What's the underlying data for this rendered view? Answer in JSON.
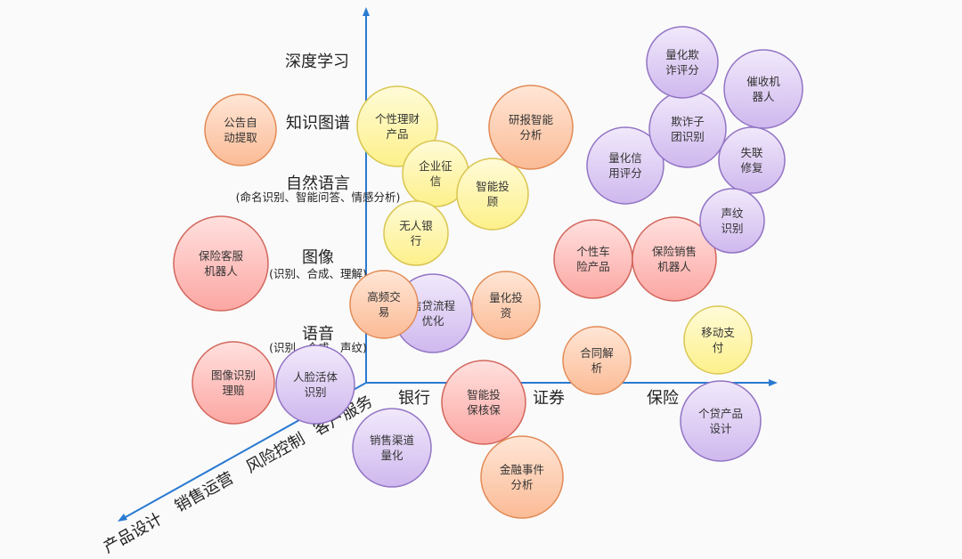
{
  "colors": {
    "axis": "#2a7ad2",
    "red": {
      "fill": "#fca7a3",
      "light": "#ffe0de",
      "stroke": "#d2665c"
    },
    "orange": {
      "fill": "#fbbb96",
      "light": "#ffe6d6",
      "stroke": "#e28a55"
    },
    "yellow": {
      "fill": "#fdf08a",
      "light": "#fffbd8",
      "stroke": "#d9c650"
    },
    "purple": {
      "fill": "#cfb8ee",
      "light": "#f1e9fb",
      "stroke": "#9274c4"
    }
  },
  "vertical_axis_labels": [
    {
      "title": "深度学习",
      "sub": ""
    },
    {
      "title": "知识图谱",
      "sub": ""
    },
    {
      "title": "自然语言",
      "sub": "(命名识别、智能问答、情感分析)"
    },
    {
      "title": "图像",
      "sub": "(识别、合成、理解)"
    },
    {
      "title": "语音",
      "sub": "(识别、合成、声纹)"
    }
  ],
  "horizontal_axis_labels": [
    "银行",
    "证券",
    "保险"
  ],
  "diagonal_axis_labels": [
    "客户服务",
    "风险控制",
    "销售运营",
    "产品设计"
  ],
  "bubbles": [
    {
      "lines": [
        "公告自",
        "动提取"
      ],
      "color": "orange"
    },
    {
      "lines": [
        "保险客服",
        "机器人"
      ],
      "color": "red"
    },
    {
      "lines": [
        "图像识别",
        "理赔"
      ],
      "color": "red"
    },
    {
      "lines": [
        "人脸活体",
        "识别"
      ],
      "color": "purple"
    },
    {
      "lines": [
        "个性理财",
        "产品"
      ],
      "color": "yellow"
    },
    {
      "lines": [
        "企业征",
        "信"
      ],
      "color": "yellow"
    },
    {
      "lines": [
        "智能投",
        "顾"
      ],
      "color": "yellow"
    },
    {
      "lines": [
        "无人银",
        "行"
      ],
      "color": "yellow"
    },
    {
      "lines": [
        "研报智能",
        "分析"
      ],
      "color": "orange"
    },
    {
      "lines": [
        "信贷流程",
        "优化"
      ],
      "color": "purple"
    },
    {
      "lines": [
        "高频交",
        "易"
      ],
      "color": "orange"
    },
    {
      "lines": [
        "量化投",
        "资"
      ],
      "color": "orange"
    },
    {
      "lines": [
        "智能投",
        "保核保"
      ],
      "color": "red"
    },
    {
      "lines": [
        "销售渠道",
        "量化"
      ],
      "color": "purple"
    },
    {
      "lines": [
        "金融事件",
        "分析"
      ],
      "color": "orange"
    },
    {
      "lines": [
        "合同解",
        "析"
      ],
      "color": "orange"
    },
    {
      "lines": [
        "个性车",
        "险产品"
      ],
      "color": "red"
    },
    {
      "lines": [
        "保险销售",
        "机器人"
      ],
      "color": "red"
    },
    {
      "lines": [
        "量化信",
        "用评分"
      ],
      "color": "purple"
    },
    {
      "lines": [
        "欺诈子",
        "团识别"
      ],
      "color": "purple"
    },
    {
      "lines": [
        "量化欺",
        "诈评分"
      ],
      "color": "purple"
    },
    {
      "lines": [
        "催收机",
        "器人"
      ],
      "color": "purple"
    },
    {
      "lines": [
        "失联",
        "修复"
      ],
      "color": "purple"
    },
    {
      "lines": [
        "声纹",
        "识别"
      ],
      "color": "purple"
    },
    {
      "lines": [
        "移动支",
        "付"
      ],
      "color": "yellow"
    },
    {
      "lines": [
        "个贷产品",
        "设计"
      ],
      "color": "purple"
    }
  ]
}
